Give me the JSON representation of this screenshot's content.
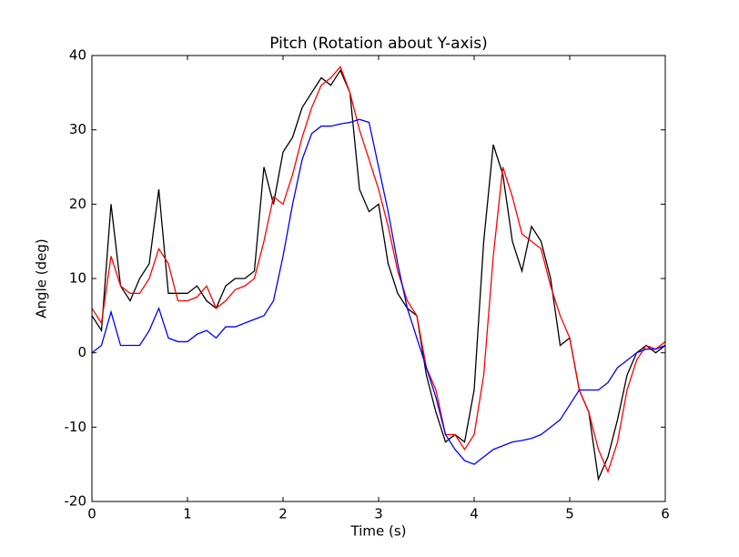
{
  "chart_data": {
    "type": "line",
    "title": "Pitch (Rotation about Y-axis)",
    "xlabel": "Time (s)",
    "ylabel": "Angle (deg)",
    "x": [
      0,
      0.1,
      0.2,
      0.3,
      0.4,
      0.5,
      0.6,
      0.7,
      0.8,
      0.9,
      1,
      1.1,
      1.2,
      1.3,
      1.4,
      1.5,
      1.6,
      1.7,
      1.8,
      1.9,
      2,
      2.1,
      2.2,
      2.3,
      2.4,
      2.5,
      2.6,
      2.7,
      2.8,
      2.9,
      3,
      3.1,
      3.2,
      3.3,
      3.4,
      3.5,
      3.6,
      3.7,
      3.8,
      3.9,
      4,
      4.1,
      4.2,
      4.3,
      4.4,
      4.5,
      4.6,
      4.7,
      4.8,
      4.9,
      5,
      5.1,
      5.2,
      5.3,
      5.4,
      5.5,
      5.6,
      5.7,
      5.8,
      5.9,
      6
    ],
    "series": [
      {
        "color": "#000000",
        "values": [
          5,
          3,
          20,
          9,
          7,
          10,
          12,
          22,
          8,
          8,
          8,
          9,
          7,
          6,
          9,
          10,
          10,
          11,
          25,
          20,
          27,
          29,
          33,
          35,
          37,
          36,
          38,
          35,
          22,
          19,
          20,
          12,
          8,
          6,
          5,
          -3,
          -8,
          -12,
          -11,
          -12,
          -5,
          15,
          28,
          24,
          15,
          11,
          17,
          15,
          10,
          1,
          2,
          -5,
          -8,
          -17,
          -14,
          -9,
          -3,
          0,
          1,
          0,
          1
        ]
      },
      {
        "color": "#ff0000",
        "values": [
          6,
          4,
          13,
          9,
          8,
          8,
          10,
          14,
          12,
          7,
          7,
          7.5,
          9,
          6,
          7,
          8.5,
          9,
          10,
          15,
          21,
          20,
          24,
          29,
          33,
          36,
          37,
          38.5,
          35,
          30,
          26,
          22,
          17,
          11,
          7,
          5,
          -2,
          -5,
          -11,
          -11,
          -13,
          -11,
          -3,
          13,
          25,
          21,
          16,
          15,
          14,
          9,
          5,
          2,
          -5,
          -8,
          -13,
          -16,
          -12,
          -5,
          -1,
          1,
          0.5,
          1.5
        ]
      },
      {
        "color": "#0000ff",
        "values": [
          0,
          1,
          5.5,
          1,
          1,
          1,
          3,
          6,
          2,
          1.5,
          1.5,
          2.5,
          3,
          2,
          3.5,
          3.5,
          4,
          4.5,
          5,
          7,
          13,
          20,
          26,
          29.5,
          30.5,
          30.5,
          30.8,
          31,
          31.4,
          31,
          25,
          19,
          12,
          6,
          2,
          -2,
          -6,
          -11,
          -13,
          -14.5,
          -15,
          -14,
          -13,
          -12.5,
          -12,
          -11.8,
          -11.5,
          -11,
          -10,
          -9,
          -7,
          -5,
          -5,
          -5,
          -4,
          -2,
          -1,
          0,
          0.5,
          0.5,
          1
        ]
      }
    ],
    "xlim": [
      0,
      6
    ],
    "xticks": [
      0,
      1,
      2,
      3,
      4,
      5,
      6
    ],
    "ylim": [
      -20,
      40
    ],
    "yticks": [
      -20,
      -10,
      0,
      10,
      20,
      30,
      40
    ]
  }
}
